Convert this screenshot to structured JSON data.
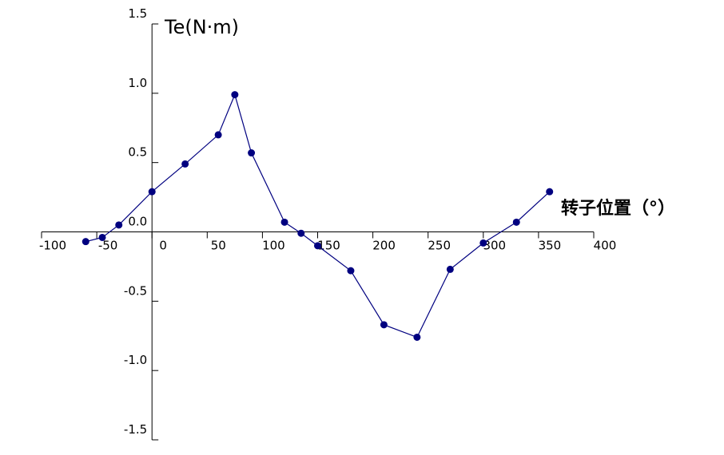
{
  "chart_data": {
    "type": "line",
    "ylabel": "Te(N·m)",
    "xlabel": "转子位置（°）",
    "x": [
      -60,
      -45,
      -30,
      0,
      30,
      60,
      75,
      90,
      120,
      135,
      150,
      180,
      210,
      240,
      270,
      300,
      330,
      360
    ],
    "series": [
      {
        "color": "#000080",
        "values": [
          -0.07,
          -0.04,
          0.05,
          0.29,
          0.49,
          0.7,
          0.99,
          0.57,
          0.07,
          -0.01,
          -0.1,
          -0.28,
          -0.67,
          -0.76,
          -0.27,
          -0.08,
          0.07,
          0.29
        ]
      }
    ],
    "xlim": [
      -100,
      400
    ],
    "xticks": [
      -100,
      -50,
      0,
      50,
      100,
      150,
      200,
      250,
      300,
      350,
      400
    ],
    "ylim": [
      -1.5,
      1.5
    ],
    "yticks": [
      1.5,
      {
        "value": 1,
        "label": "1.0"
      },
      0.5,
      {
        "value": 0,
        "label": "0.0"
      },
      -0.5,
      {
        "value": -1,
        "label": "-1.0"
      },
      -1.5
    ]
  }
}
